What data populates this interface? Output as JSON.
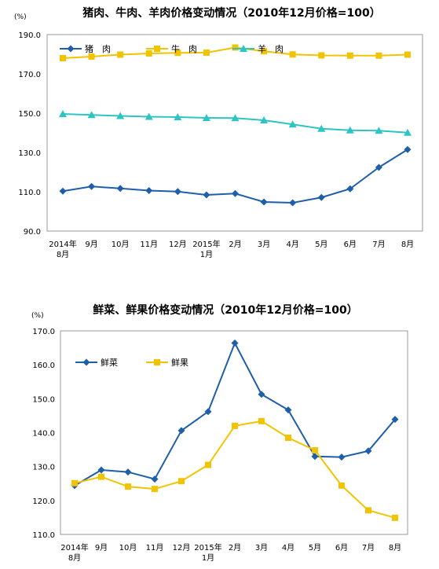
{
  "chart_data": [
    {
      "type": "line",
      "title": "猪肉、牛肉、羊肉价格变动情况（2010年12月价格=100）",
      "unit": "(%)",
      "ylim": [
        90,
        190
      ],
      "yticks": [
        "190.0",
        "170.0",
        "150.0",
        "130.0",
        "110.0",
        "90.0"
      ],
      "categories": [
        "2014年8月",
        "9月",
        "10月",
        "11月",
        "12月",
        "2015年1月",
        "2月",
        "3月",
        "4月",
        "5月",
        "6月",
        "7月",
        "8月"
      ],
      "tick_labels": [
        [
          "2014年",
          "8月"
        ],
        [
          "9月"
        ],
        [
          "10月"
        ],
        [
          "11月"
        ],
        [
          "12月"
        ],
        [
          "2015年",
          "1月"
        ],
        [
          "2月"
        ],
        [
          "3月"
        ],
        [
          "4月"
        ],
        [
          "5月"
        ],
        [
          "6月"
        ],
        [
          "7月"
        ],
        [
          "8月"
        ]
      ],
      "grid": false,
      "legend_position": "top-left",
      "series": [
        {
          "name": "猪　肉",
          "color": "#1f5ea8",
          "marker": "diamond",
          "values": [
            110.3,
            112.7,
            111.7,
            110.6,
            110.1,
            108.4,
            109.1,
            104.8,
            104.4,
            107.1,
            111.5,
            122.4,
            131.5
          ]
        },
        {
          "name": "牛　肉",
          "color": "#f2c300",
          "marker": "square",
          "values": [
            178.0,
            178.8,
            179.8,
            180.4,
            180.7,
            180.8,
            183.4,
            181.5,
            179.9,
            179.4,
            179.3,
            179.3,
            179.8
          ]
        },
        {
          "name": "羊　肉",
          "color": "#2fc4c4",
          "marker": "triangle",
          "values": [
            149.6,
            149.1,
            148.6,
            148.2,
            148.0,
            147.6,
            147.5,
            146.4,
            144.3,
            142.1,
            141.3,
            141.1,
            140.1
          ]
        }
      ]
    },
    {
      "type": "line",
      "title": "鲜菜、鲜果价格变动情况（2010年12月价格=100）",
      "unit": "(%)",
      "ylim": [
        110,
        170
      ],
      "yticks": [
        "170.0",
        "160.0",
        "150.0",
        "140.0",
        "130.0",
        "120.0",
        "110.0"
      ],
      "categories": [
        "2014年8月",
        "9月",
        "10月",
        "11月",
        "12月",
        "2015年1月",
        "2月",
        "3月",
        "4月",
        "5月",
        "6月",
        "7月",
        "8月"
      ],
      "tick_labels": [
        [
          "2014年",
          "8月"
        ],
        [
          "9月"
        ],
        [
          "10月"
        ],
        [
          "11月"
        ],
        [
          "12月"
        ],
        [
          "2015年",
          "1月"
        ],
        [
          "2月"
        ],
        [
          "3月"
        ],
        [
          "4月"
        ],
        [
          "5月"
        ],
        [
          "6月"
        ],
        [
          "7月"
        ],
        [
          "8月"
        ]
      ],
      "grid": false,
      "legend_position": "top-left",
      "series": [
        {
          "name": "鲜菜",
          "color": "#1f5ea8",
          "marker": "diamond",
          "values": [
            124.4,
            129.0,
            128.4,
            126.3,
            140.6,
            146.2,
            166.4,
            151.3,
            146.7,
            133.0,
            132.8,
            134.6,
            143.9
          ]
        },
        {
          "name": "鲜果",
          "color": "#f2c300",
          "marker": "square",
          "values": [
            125.1,
            127.0,
            124.1,
            123.4,
            125.7,
            130.5,
            142.0,
            143.4,
            138.5,
            134.8,
            124.4,
            117.1,
            114.9
          ]
        }
      ]
    }
  ]
}
